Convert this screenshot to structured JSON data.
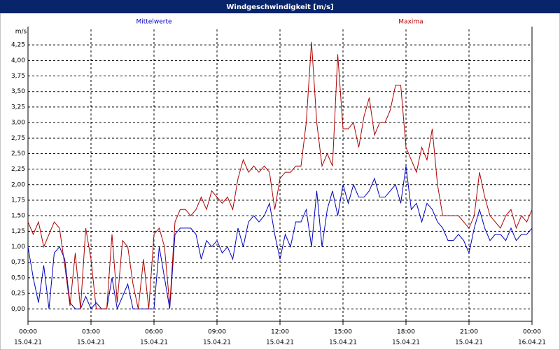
{
  "chart_data": {
    "type": "line",
    "title": "Windgeschwindigkeit [m/s]",
    "y_label": "m/s",
    "grid": true,
    "xlim": [
      0,
      24
    ],
    "xticks": [
      {
        "value": 0,
        "label": "00:00"
      },
      {
        "value": 3,
        "label": "03:00"
      },
      {
        "value": 6,
        "label": "06:00"
      },
      {
        "value": 9,
        "label": "09:00"
      },
      {
        "value": 12,
        "label": "12:00"
      },
      {
        "value": 15,
        "label": "15:00"
      },
      {
        "value": 18,
        "label": "18:00"
      },
      {
        "value": 21,
        "label": "21:00"
      },
      {
        "value": 24,
        "label": "00:00"
      }
    ],
    "xtick_dates": [
      "15.04.21",
      "15.04.21",
      "15.04.21",
      "15.04.21",
      "15.04.21",
      "15.04.21",
      "15.04.21",
      "15.04.21",
      "16.04.21"
    ],
    "ylim": [
      -0.2,
      4.5
    ],
    "yticks": [
      {
        "value": 0,
        "label": "0,00"
      },
      {
        "value": 0.25,
        "label": "0,25"
      },
      {
        "value": 0.5,
        "label": "0,50"
      },
      {
        "value": 0.75,
        "label": "0,75"
      },
      {
        "value": 1,
        "label": "1,00"
      },
      {
        "value": 1.25,
        "label": "1,25"
      },
      {
        "value": 1.5,
        "label": "1,50"
      },
      {
        "value": 1.75,
        "label": "1,75"
      },
      {
        "value": 2,
        "label": "2,00"
      },
      {
        "value": 2.25,
        "label": "2,25"
      },
      {
        "value": 2.5,
        "label": "2,50"
      },
      {
        "value": 2.75,
        "label": "2,75"
      },
      {
        "value": 3,
        "label": "3,00"
      },
      {
        "value": 3.25,
        "label": "3,25"
      },
      {
        "value": 3.5,
        "label": "3,50"
      },
      {
        "value": 3.75,
        "label": "3,75"
      },
      {
        "value": 4,
        "label": "4,00"
      },
      {
        "value": 4.25,
        "label": "4,25"
      }
    ],
    "x": [
      0,
      0.25,
      0.5,
      0.75,
      1,
      1.25,
      1.5,
      1.75,
      2,
      2.25,
      2.5,
      2.75,
      3,
      3.25,
      3.5,
      3.75,
      4,
      4.25,
      4.5,
      4.75,
      5,
      5.25,
      5.5,
      5.75,
      6,
      6.25,
      6.5,
      6.75,
      7,
      7.25,
      7.5,
      7.75,
      8,
      8.25,
      8.5,
      8.75,
      9,
      9.25,
      9.5,
      9.75,
      10,
      10.25,
      10.5,
      10.75,
      11,
      11.25,
      11.5,
      11.75,
      12,
      12.25,
      12.5,
      12.75,
      13,
      13.25,
      13.5,
      13.75,
      14,
      14.25,
      14.5,
      14.75,
      15,
      15.25,
      15.5,
      15.75,
      16,
      16.25,
      16.5,
      16.75,
      17,
      17.25,
      17.5,
      17.75,
      18,
      18.25,
      18.5,
      18.75,
      19,
      19.25,
      19.5,
      19.75,
      20,
      20.25,
      20.5,
      20.75,
      21,
      21.25,
      21.5,
      21.75,
      22,
      22.25,
      22.5,
      22.75,
      23,
      23.25,
      23.5,
      23.75,
      24
    ],
    "series": [
      {
        "name": "Mittelwerte",
        "color": "#0000c0",
        "values": [
          1.0,
          0.5,
          0.1,
          0.7,
          0.0,
          0.9,
          1.0,
          0.8,
          0.1,
          0.0,
          0.0,
          0.2,
          0.0,
          0.1,
          0.0,
          0.0,
          0.5,
          0.0,
          0.2,
          0.4,
          0.0,
          0.0,
          0.0,
          0.0,
          0.0,
          1.0,
          0.5,
          0.0,
          1.2,
          1.3,
          1.3,
          1.3,
          1.2,
          0.8,
          1.1,
          1.0,
          1.1,
          0.9,
          1.0,
          0.8,
          1.3,
          1.0,
          1.4,
          1.5,
          1.4,
          1.5,
          1.7,
          1.2,
          0.8,
          1.2,
          1.0,
          1.4,
          1.4,
          1.6,
          1.0,
          1.9,
          1.0,
          1.6,
          1.9,
          1.5,
          2.0,
          1.7,
          2.0,
          1.8,
          1.8,
          1.9,
          2.1,
          1.8,
          1.8,
          1.9,
          2.0,
          1.7,
          2.3,
          1.6,
          1.7,
          1.4,
          1.7,
          1.6,
          1.4,
          1.3,
          1.1,
          1.1,
          1.2,
          1.1,
          0.9,
          1.3,
          1.6,
          1.3,
          1.1,
          1.2,
          1.2,
          1.1,
          1.3,
          1.1,
          1.2,
          1.2,
          1.3
        ]
      },
      {
        "name": "Maxima",
        "color": "#b00000",
        "values": [
          1.4,
          1.2,
          1.4,
          1.0,
          1.2,
          1.4,
          1.3,
          0.7,
          0.05,
          0.9,
          0.0,
          1.3,
          0.8,
          0.0,
          0.0,
          0.0,
          1.2,
          0.1,
          1.1,
          1.0,
          0.4,
          0.0,
          0.8,
          0.0,
          1.2,
          1.3,
          1.0,
          0.05,
          1.4,
          1.6,
          1.6,
          1.5,
          1.6,
          1.8,
          1.6,
          1.9,
          1.8,
          1.7,
          1.8,
          1.6,
          2.1,
          2.4,
          2.2,
          2.3,
          2.2,
          2.3,
          2.2,
          1.6,
          2.1,
          2.2,
          2.2,
          2.3,
          2.3,
          3.0,
          4.3,
          3.0,
          2.3,
          2.5,
          2.3,
          4.1,
          2.9,
          2.9,
          3.0,
          2.6,
          3.1,
          3.4,
          2.8,
          3.0,
          3.0,
          3.2,
          3.6,
          3.6,
          2.6,
          2.4,
          2.2,
          2.6,
          2.4,
          2.9,
          2.0,
          1.5,
          1.5,
          1.5,
          1.5,
          1.4,
          1.3,
          1.5,
          2.2,
          1.8,
          1.5,
          1.4,
          1.3,
          1.5,
          1.6,
          1.3,
          1.5,
          1.4,
          1.6
        ]
      }
    ]
  }
}
